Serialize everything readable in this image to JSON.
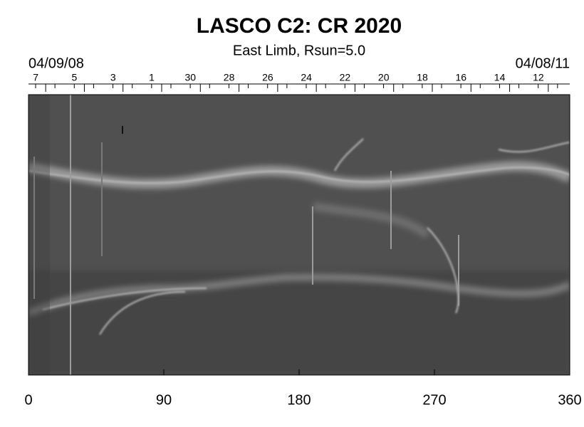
{
  "chart_data": {
    "type": "synoptic-map",
    "title": "LASCO C2: CR 2020",
    "subtitle": "East Limb, Rsun=5.0",
    "start_date": "04/09/08",
    "end_date": "04/08/11",
    "top_labels": [
      "7",
      "5",
      "3",
      "1",
      "30",
      "28",
      "26",
      "24",
      "22",
      "20",
      "18",
      "16",
      "14",
      "12"
    ],
    "xlim": [
      0,
      360
    ],
    "xticks": [
      0,
      90,
      180,
      270,
      360
    ]
  }
}
